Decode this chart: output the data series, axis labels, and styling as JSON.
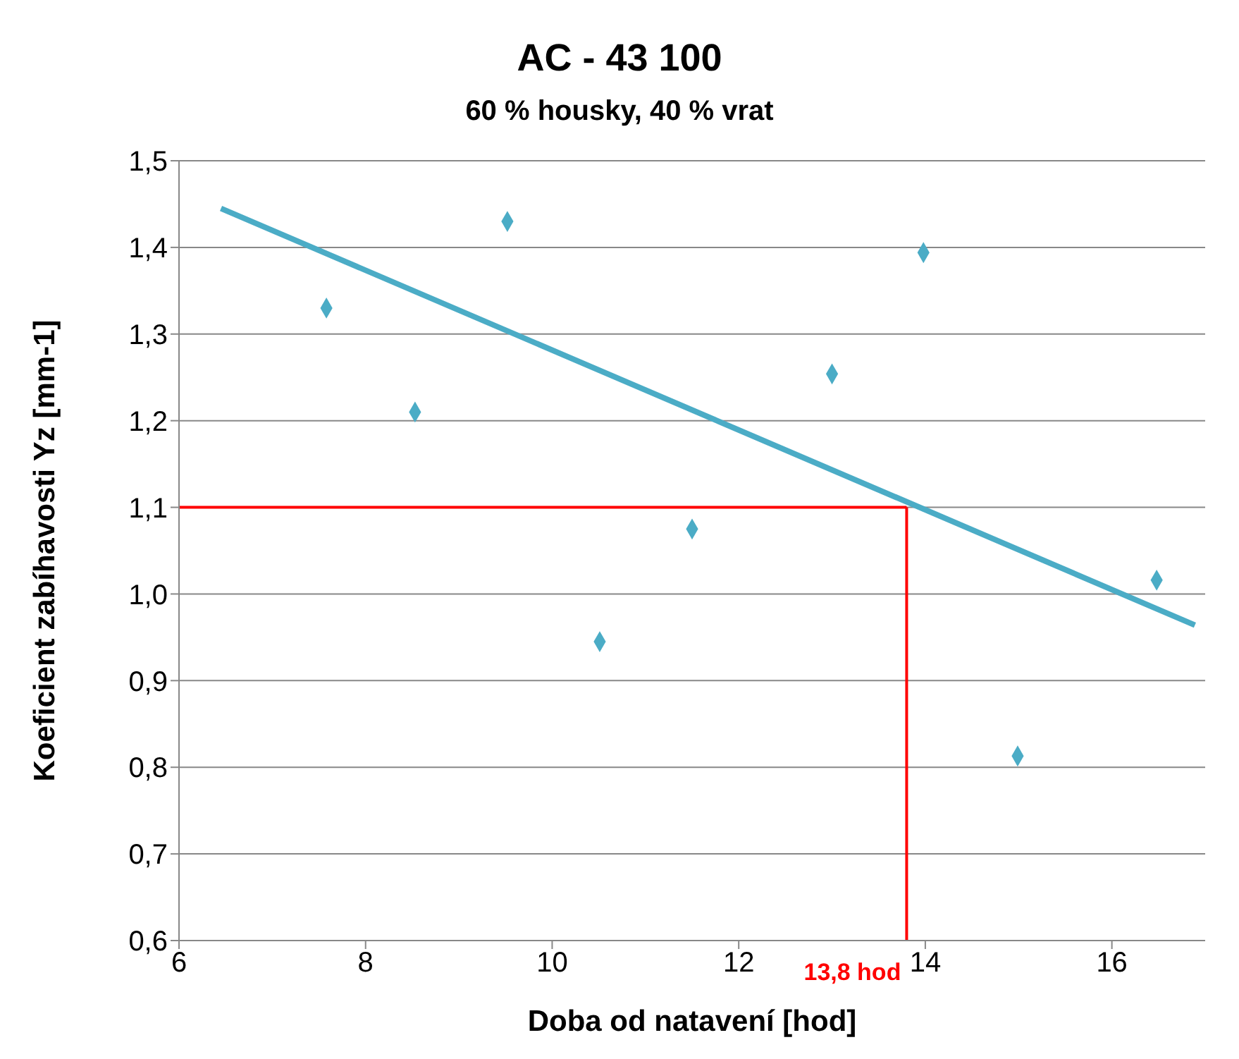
{
  "chart_data": {
    "type": "scatter",
    "title": "AC - 43 100",
    "subtitle": "60 % housky, 40 % vrat",
    "xlabel": "Doba od natavení [hod]",
    "ylabel": "Koeficient zabíhavosti Yz [mm-1]",
    "series": [
      {
        "color": "#4bacc6",
        "marker": "diamond",
        "x": [
          7.58,
          8.53,
          9.52,
          10.51,
          11.5,
          13.0,
          13.98,
          14.99,
          16.48
        ],
        "values": [
          1.33,
          1.21,
          1.43,
          0.945,
          1.075,
          1.254,
          1.394,
          0.813,
          1.016
        ]
      },
      {
        "type": "line",
        "color": "#4bacc6",
        "marker": "none",
        "x": [
          6.45,
          16.89
        ],
        "values": [
          1.445,
          0.964
        ]
      }
    ],
    "xlim": [
      6,
      17
    ],
    "xticks": [
      6,
      8,
      10,
      12,
      14,
      16
    ],
    "ylim": [
      0.6,
      1.5
    ],
    "yticks": [
      {
        "value": 0.6,
        "label": "0,6"
      },
      {
        "value": 0.7,
        "label": "0,7"
      },
      {
        "value": 0.8,
        "label": "0,8"
      },
      {
        "value": 0.9,
        "label": "0,9"
      },
      {
        "value": 1.0,
        "label": "1,0"
      },
      {
        "value": 1.1,
        "label": "1,1"
      },
      {
        "value": 1.2,
        "label": "1,2"
      },
      {
        "value": 1.3,
        "label": "1,3"
      },
      {
        "value": 1.4,
        "label": "1,4"
      },
      {
        "value": 1.5,
        "label": "1,5"
      }
    ],
    "grid": "y",
    "ref_lines": [
      {
        "axis": "y",
        "value": 1.1,
        "color": "#ff0000"
      },
      {
        "axis": "x",
        "value": 13.8,
        "label": "13,8 hod",
        "color": "#ff0000"
      }
    ]
  }
}
